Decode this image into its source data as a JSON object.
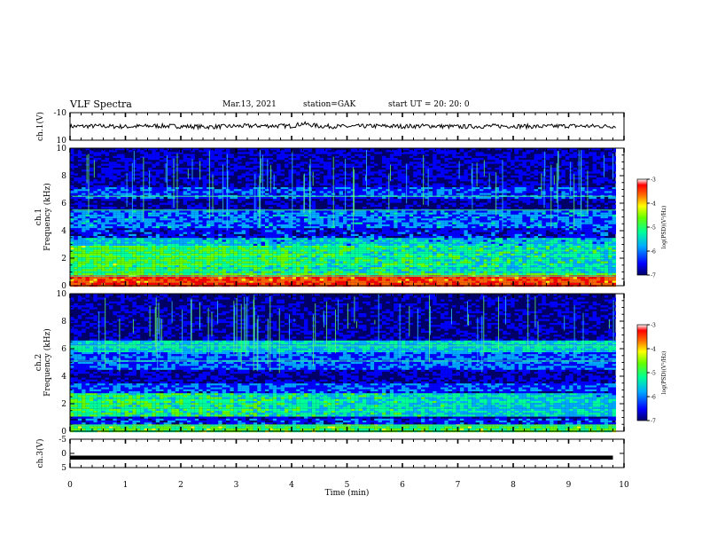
{
  "header": {
    "title": "VLF Spectra",
    "date": "Mar.13, 2021",
    "station": "station=GAK",
    "start": "start  UT =  20: 20: 0"
  },
  "chart_data": [
    {
      "type": "line",
      "panel": "ch1-waveform",
      "ylabel": "ch.1(V)",
      "ylim": [
        -10,
        10
      ],
      "yticks": [
        "10",
        "-10"
      ],
      "x": [
        0,
        0.5,
        1,
        1.5,
        2,
        2.5,
        3,
        3.5,
        4,
        4.2,
        4.5,
        5,
        5.5,
        6,
        6.5,
        7,
        7.5,
        8,
        8.5,
        9,
        9.5,
        9.8
      ],
      "values": [
        0,
        0.3,
        -0.2,
        0.4,
        0.1,
        -0.3,
        0.2,
        0.5,
        0.3,
        2.0,
        0.2,
        -0.1,
        0.3,
        0.1,
        0.4,
        -0.2,
        0.2,
        0.3,
        -0.1,
        0.4,
        0.1,
        0.2
      ],
      "line_color": "#000000"
    },
    {
      "type": "heatmap",
      "panel": "ch1-spectrogram",
      "ylabel_line1": "ch.1",
      "ylabel_line2": "Frequency  (kHz)",
      "ylim": [
        0,
        10
      ],
      "yticks": [
        "0",
        "2",
        "4",
        "6",
        "8",
        "10"
      ],
      "colorbar": {
        "label": "log(PSD)(V²/Hz)",
        "range": [
          -7,
          -3
        ],
        "ticks": [
          "-3",
          "-4",
          "-5",
          "-6",
          "-7"
        ],
        "colors": [
          "#000066",
          "#0000ff",
          "#00aaff",
          "#00ff99",
          "#66ff00",
          "#ffff00",
          "#ff6600",
          "#ff0000",
          "#ffffff"
        ]
      },
      "bands_khz": [
        {
          "f0": 0.0,
          "f1": 0.3,
          "level": -3.5
        },
        {
          "f0": 0.3,
          "f1": 0.9,
          "level": -3.6
        },
        {
          "f0": 0.9,
          "f1": 1.6,
          "level": -5.0
        },
        {
          "f0": 1.6,
          "f1": 3.0,
          "level": -4.9
        },
        {
          "f0": 3.0,
          "f1": 3.5,
          "level": -5.6
        },
        {
          "f0": 3.5,
          "f1": 4.3,
          "level": -6.3
        },
        {
          "f0": 4.3,
          "f1": 5.5,
          "level": -5.9
        },
        {
          "f0": 5.5,
          "f1": 6.4,
          "level": -6.6
        },
        {
          "f0": 6.4,
          "f1": 7.2,
          "level": -6.1
        },
        {
          "f0": 7.2,
          "f1": 10.0,
          "level": -6.5
        }
      ],
      "tones_khz": [
        0.7,
        5.5,
        6.5
      ]
    },
    {
      "type": "heatmap",
      "panel": "ch2-spectrogram",
      "ylabel_line1": "ch.2",
      "ylabel_line2": "Frequency  (kHz)",
      "ylim": [
        0,
        10
      ],
      "yticks": [
        "0",
        "2",
        "4",
        "6",
        "8",
        "10"
      ],
      "colorbar": {
        "label": "log(PSD)(V²/Hz)",
        "range": [
          -7,
          -3
        ],
        "ticks": [
          "-3",
          "-4",
          "-5",
          "-6",
          "-7"
        ],
        "colors": [
          "#000066",
          "#0000ff",
          "#00aaff",
          "#00ff99",
          "#66ff00",
          "#ffff00",
          "#ff6600",
          "#ff0000",
          "#ffffff"
        ]
      },
      "bands_khz": [
        {
          "f0": 0.0,
          "f1": 0.6,
          "level": -4.9
        },
        {
          "f0": 0.6,
          "f1": 1.2,
          "level": -6.2
        },
        {
          "f0": 1.2,
          "f1": 2.8,
          "level": -5.1
        },
        {
          "f0": 2.8,
          "f1": 3.6,
          "level": -6.0
        },
        {
          "f0": 3.6,
          "f1": 4.5,
          "level": -6.5
        },
        {
          "f0": 4.5,
          "f1": 5.8,
          "level": -6.0
        },
        {
          "f0": 5.8,
          "f1": 6.6,
          "level": -5.5
        },
        {
          "f0": 6.6,
          "f1": 10.0,
          "level": -6.6
        }
      ],
      "tones_khz": [
        0.4,
        5.1,
        6.2
      ]
    },
    {
      "type": "line",
      "panel": "ch3-waveform",
      "ylabel": "ch.3(V)",
      "ylim": [
        -5,
        5
      ],
      "yticks": [
        "5",
        "0",
        "-5"
      ],
      "x": [
        0,
        9.8
      ],
      "values": [
        -1.5,
        -1.5
      ],
      "line_color": "#000000"
    }
  ],
  "xaxis": {
    "label": "Time  (min)",
    "range": [
      0,
      10
    ],
    "ticks": [
      "0",
      "1",
      "2",
      "3",
      "4",
      "5",
      "6",
      "7",
      "8",
      "9",
      "10"
    ]
  }
}
